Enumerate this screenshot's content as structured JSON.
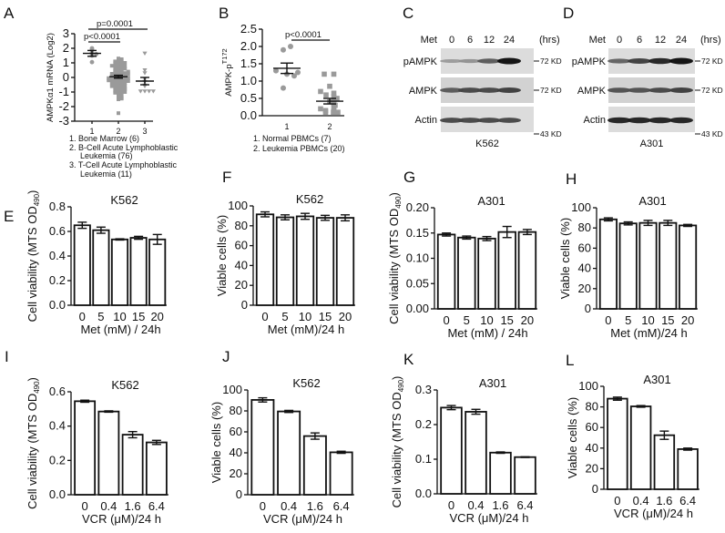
{
  "panel_labels": [
    "A",
    "B",
    "C",
    "D",
    "E",
    "F",
    "G",
    "H",
    "I",
    "J",
    "K",
    "L"
  ],
  "chart_data": [
    {
      "id": "A",
      "type": "scatter",
      "ylabel": "AMPKα1 mRNA (Log2)",
      "ylim": [
        -3,
        3
      ],
      "yticks": [
        "3",
        "2",
        "1",
        "0",
        "-1",
        "-2",
        "-3"
      ],
      "categories": [
        "1",
        "2",
        "3"
      ],
      "annotations": [
        {
          "text": "p<0.0001",
          "from": "1",
          "to": "2"
        },
        {
          "text": "p=0.0001",
          "from": "1",
          "to": "3"
        }
      ],
      "legend_notes": [
        "1. Bone Marrow (6)",
        "2. B-Cell Acute Lymphoblastic",
        "Leukemia (76)",
        "3. T-Cell Acute Lymphoblastic",
        "Leukemia (11)"
      ],
      "series": [
        {
          "name": "Bone Marrow",
          "marker": "circle",
          "mean": 1.65,
          "sem": 0.2,
          "values": [
            2.0,
            1.9,
            1.7,
            1.6,
            1.5,
            1.05
          ]
        },
        {
          "name": "B-Cell ALL",
          "marker": "square",
          "mean": 0.05,
          "sem": 0.1,
          "values": [
            1.3,
            1.25,
            1.2,
            1.15,
            1.1,
            1.05,
            1.0,
            0.95,
            0.9,
            0.85,
            0.8,
            0.75,
            0.7,
            0.65,
            0.6,
            0.55,
            0.5,
            0.45,
            0.4,
            0.35,
            0.3,
            0.3,
            0.25,
            0.2,
            0.2,
            0.15,
            0.1,
            0.1,
            0.05,
            0.05,
            0.0,
            0.0,
            0.0,
            -0.05,
            -0.05,
            -0.1,
            -0.1,
            -0.15,
            -0.2,
            -0.2,
            -0.25,
            -0.3,
            -0.3,
            -0.35,
            -0.4,
            -0.45,
            -0.5,
            -0.5,
            -0.55,
            -0.6,
            -0.65,
            -0.7,
            -0.75,
            -0.8,
            -0.85,
            -0.9,
            -0.95,
            -1.0,
            -1.05,
            -1.1,
            -1.2,
            -1.3,
            -1.4,
            -1.5,
            0.6,
            0.4,
            0.2,
            -0.2,
            -0.4,
            -0.6,
            0.8,
            1.0,
            -0.8,
            -1.0,
            -1.45,
            -2.45
          ]
        },
        {
          "name": "T-Cell ALL",
          "marker": "triangle-down",
          "mean": -0.25,
          "sem": 0.25,
          "values": [
            1.65,
            0.5,
            0.3,
            -0.1,
            -0.3,
            -0.55,
            -0.95,
            -0.95,
            -0.95,
            -0.95,
            -0.6
          ]
        }
      ]
    },
    {
      "id": "B",
      "type": "scatter",
      "ylabel": "AMPK-p",
      "ylabel_sup": "T172",
      "ylim": [
        0,
        2.5
      ],
      "yticks": [
        "2.5",
        "2.0",
        "1.5",
        "1.0",
        "0.5",
        "0.0"
      ],
      "categories": [
        "1",
        "2"
      ],
      "annotations": [
        {
          "text": "p<0.0001",
          "from": "1",
          "to": "2"
        }
      ],
      "legend_notes": [
        "1. Normal PBMCs (7)",
        "2. Leukemia PBMCs (20)"
      ],
      "series": [
        {
          "name": "Normal PBMCs",
          "marker": "circle",
          "mean": 1.37,
          "sem": 0.15,
          "values": [
            2.0,
            1.9,
            1.3,
            1.25,
            1.2,
            1.15,
            0.8
          ]
        },
        {
          "name": "Leukemia PBMCs",
          "marker": "square",
          "mean": 0.42,
          "sem": 0.08,
          "values": [
            1.2,
            1.2,
            0.85,
            0.7,
            0.65,
            0.6,
            0.55,
            0.5,
            0.45,
            0.4,
            0.35,
            0.3,
            0.25,
            0.2,
            0.15,
            0.15,
            0.1,
            0.1,
            0.1,
            0.1
          ]
        }
      ]
    },
    {
      "id": "E",
      "type": "bar",
      "title": "K562",
      "ylabel": "Cell viability (MTS OD",
      "ylabel_sub": "490",
      "ylabel_end": ")",
      "xlabel": "Met (mM) / 24h",
      "categories": [
        "0",
        "5",
        "10",
        "15",
        "20"
      ],
      "values": [
        0.65,
        0.61,
        0.535,
        0.548,
        0.535
      ],
      "errors": [
        0.025,
        0.025,
        0.005,
        0.012,
        0.04
      ],
      "ylim": [
        0,
        0.8
      ],
      "yticks": [
        "0.0",
        "0.2",
        "0.4",
        "0.6",
        "0.8"
      ]
    },
    {
      "id": "F",
      "type": "bar",
      "title": "K562",
      "ylabel": "Viable cells (%)",
      "xlabel": "Met (mM)/24 h",
      "categories": [
        "0",
        "5",
        "10",
        "15",
        "20"
      ],
      "values": [
        91.5,
        88.5,
        89.5,
        88,
        88
      ],
      "errors": [
        2.5,
        2.5,
        3,
        2.5,
        3
      ],
      "ylim": [
        0,
        100
      ],
      "yticks": [
        "0",
        "20",
        "40",
        "60",
        "80",
        "100"
      ]
    },
    {
      "id": "G",
      "type": "bar",
      "title": "A301",
      "ylabel": "Cell viability (MTS OD",
      "ylabel_sub": "490",
      "ylabel_end": ")",
      "xlabel": "Met (mM) / 24h",
      "categories": [
        "0",
        "5",
        "10",
        "15",
        "20"
      ],
      "values": [
        0.147,
        0.141,
        0.139,
        0.152,
        0.152
      ],
      "errors": [
        0.003,
        0.003,
        0.004,
        0.011,
        0.005
      ],
      "ylim": [
        0,
        0.2
      ],
      "yticks": [
        "0.00",
        "0.05",
        "0.10",
        "0.15",
        "0.20"
      ]
    },
    {
      "id": "H",
      "type": "bar",
      "title": "A301",
      "ylabel": "Viable cells (%)",
      "xlabel": "Met (mM)/24 h",
      "categories": [
        "0",
        "5",
        "10",
        "15",
        "20"
      ],
      "values": [
        88.5,
        84.5,
        85,
        85,
        82.5
      ],
      "errors": [
        1.5,
        1.5,
        2.5,
        2.5,
        1
      ],
      "ylim": [
        0,
        100
      ],
      "yticks": [
        "0",
        "20",
        "40",
        "60",
        "80",
        "100"
      ]
    },
    {
      "id": "I",
      "type": "bar",
      "title": "K562",
      "ylabel": "Cell viability (MTS OD",
      "ylabel_sub": "490",
      "ylabel_end": ")",
      "xlabel": "VCR (μM)/24 h",
      "categories": [
        "0",
        "0.4",
        "1.6",
        "6.4"
      ],
      "values": [
        0.545,
        0.485,
        0.35,
        0.305
      ],
      "errors": [
        0.006,
        0.004,
        0.018,
        0.012
      ],
      "ylim": [
        0,
        0.6
      ],
      "yticks": [
        "0.0",
        "0.2",
        "0.4",
        "0.6"
      ]
    },
    {
      "id": "J",
      "type": "bar",
      "title": "K562",
      "ylabel": "Viable cells (%)",
      "xlabel": "VCR (μM)/24 h",
      "categories": [
        "0",
        "0.4",
        "1.6",
        "6.4"
      ],
      "values": [
        90.5,
        79.5,
        56,
        40.5
      ],
      "errors": [
        2,
        1,
        3,
        1
      ],
      "ylim": [
        0,
        100
      ],
      "yticks": [
        "0",
        "20",
        "40",
        "60",
        "80",
        "100"
      ]
    },
    {
      "id": "K",
      "type": "bar",
      "title": "A301",
      "ylabel": "Cell viability (MTS OD",
      "ylabel_sub": "490",
      "ylabel_end": ")",
      "xlabel": "VCR (μM)/24 h",
      "categories": [
        "0",
        "0.4",
        "1.6",
        "6.4"
      ],
      "values": [
        0.249,
        0.237,
        0.119,
        0.106
      ],
      "errors": [
        0.006,
        0.007,
        0.002,
        0.001
      ],
      "ylim": [
        0,
        0.3
      ],
      "yticks": [
        "0.0",
        "0.1",
        "0.2",
        "0.3"
      ]
    },
    {
      "id": "L",
      "type": "bar",
      "title": "A301",
      "ylabel": "Viable cells (%)",
      "xlabel": "VCR (μM)/24 h",
      "categories": [
        "0",
        "0.4",
        "1.6",
        "6.4"
      ],
      "values": [
        88,
        80.5,
        52.5,
        39
      ],
      "errors": [
        1.5,
        0.8,
        4,
        1
      ],
      "ylim": [
        0,
        100
      ],
      "yticks": [
        "0",
        "20",
        "40",
        "60",
        "80",
        "100"
      ]
    }
  ],
  "blots": [
    {
      "id": "C",
      "treatment": "Met",
      "timepoints": [
        "0",
        "6",
        "12",
        "24"
      ],
      "unit": "(hrs)",
      "cell_line": "K562",
      "rows": [
        {
          "label": "pAMPK",
          "marker": "72 KD",
          "intensities": [
            0.25,
            0.3,
            0.6,
            1.0
          ]
        },
        {
          "label": "AMPK",
          "marker": "72 KD",
          "intensities": [
            0.6,
            0.7,
            0.7,
            0.75
          ]
        },
        {
          "label": "Actin",
          "marker": "43 KD",
          "intensities": [
            0.7,
            0.7,
            0.7,
            0.7
          ]
        }
      ]
    },
    {
      "id": "D",
      "treatment": "Met",
      "timepoints": [
        "0",
        "6",
        "12",
        "24"
      ],
      "unit": "(hrs)",
      "cell_line": "A301",
      "rows": [
        {
          "label": "pAMPK",
          "marker": "72 KD",
          "intensities": [
            0.55,
            0.75,
            0.9,
            1.0
          ]
        },
        {
          "label": "AMPK",
          "marker": "72 KD",
          "intensities": [
            0.65,
            0.65,
            0.7,
            0.75
          ]
        },
        {
          "label": "Actin",
          "marker": "43 KD",
          "intensities": [
            0.9,
            0.9,
            0.9,
            0.9
          ]
        }
      ]
    }
  ]
}
